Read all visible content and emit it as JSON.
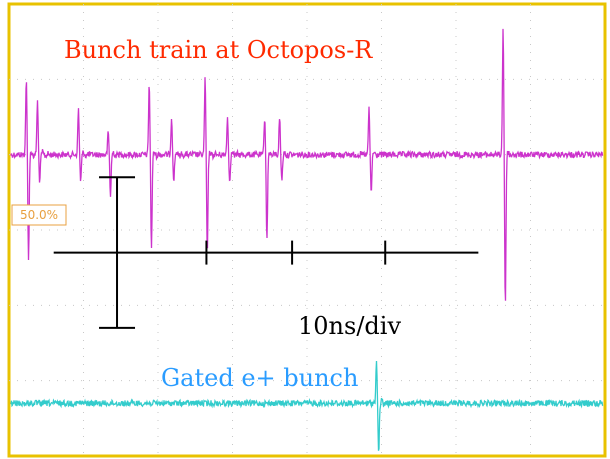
{
  "chart_data": {
    "type": "line",
    "title": "",
    "colors": {
      "frame": "#e8c200",
      "grid": "#c8c8c8",
      "marker": "#e8a040",
      "scale_bar": "#000000"
    },
    "channel_marker": {
      "text": "50.0%"
    },
    "annotations": [
      {
        "text": "Bunch train at Octopos-R",
        "color": "#ff2a00"
      },
      {
        "text": "Gated e+ bunch",
        "color": "#2a9cff"
      },
      {
        "text": "10ns/div",
        "color": "#000000"
      }
    ],
    "series": [
      {
        "name": "Bunch train at Octopos-R",
        "color": "#cc33cc",
        "baseline_div": 2.0,
        "x_unit": "div",
        "y_unit": "div",
        "pulses": [
          {
            "x": 0.25,
            "up": 1.0,
            "down": 1.4
          },
          {
            "x": 0.4,
            "up": 0.7,
            "down": 0.35
          },
          {
            "x": 0.95,
            "up": 0.6,
            "down": 0.35
          },
          {
            "x": 1.35,
            "up": 0.3,
            "down": 0.55
          },
          {
            "x": 1.9,
            "up": 0.95,
            "down": 1.25
          },
          {
            "x": 2.2,
            "up": 0.5,
            "down": 0.35
          },
          {
            "x": 2.65,
            "up": 1.0,
            "down": 1.3
          },
          {
            "x": 2.95,
            "up": 0.5,
            "down": 0.35
          },
          {
            "x": 3.45,
            "up": 0.5,
            "down": 1.15
          },
          {
            "x": 3.65,
            "up": 0.5,
            "down": 0.35
          },
          {
            "x": 4.85,
            "up": 0.6,
            "down": 0.5
          },
          {
            "x": 6.65,
            "up": 1.7,
            "down": 2.0
          }
        ]
      },
      {
        "name": "Gated e+ bunch",
        "color": "#33cccc",
        "baseline_div": 5.3,
        "x_unit": "div",
        "y_unit": "div",
        "pulses": [
          {
            "x": 4.95,
            "up": 0.55,
            "down": 0.65
          }
        ]
      }
    ],
    "scale_bar": {
      "label": "10ns/div",
      "x_start_div": 0.6,
      "x_end_div": 6.3,
      "y_div": 3.3,
      "ticks_div": [
        2.65,
        3.8,
        5.05
      ],
      "cross_x_div": 1.45,
      "cross_y_range_div": [
        2.3,
        4.3
      ]
    },
    "axes": {
      "x_divisions": 8,
      "y_divisions": 6,
      "grid": "dotted"
    }
  }
}
